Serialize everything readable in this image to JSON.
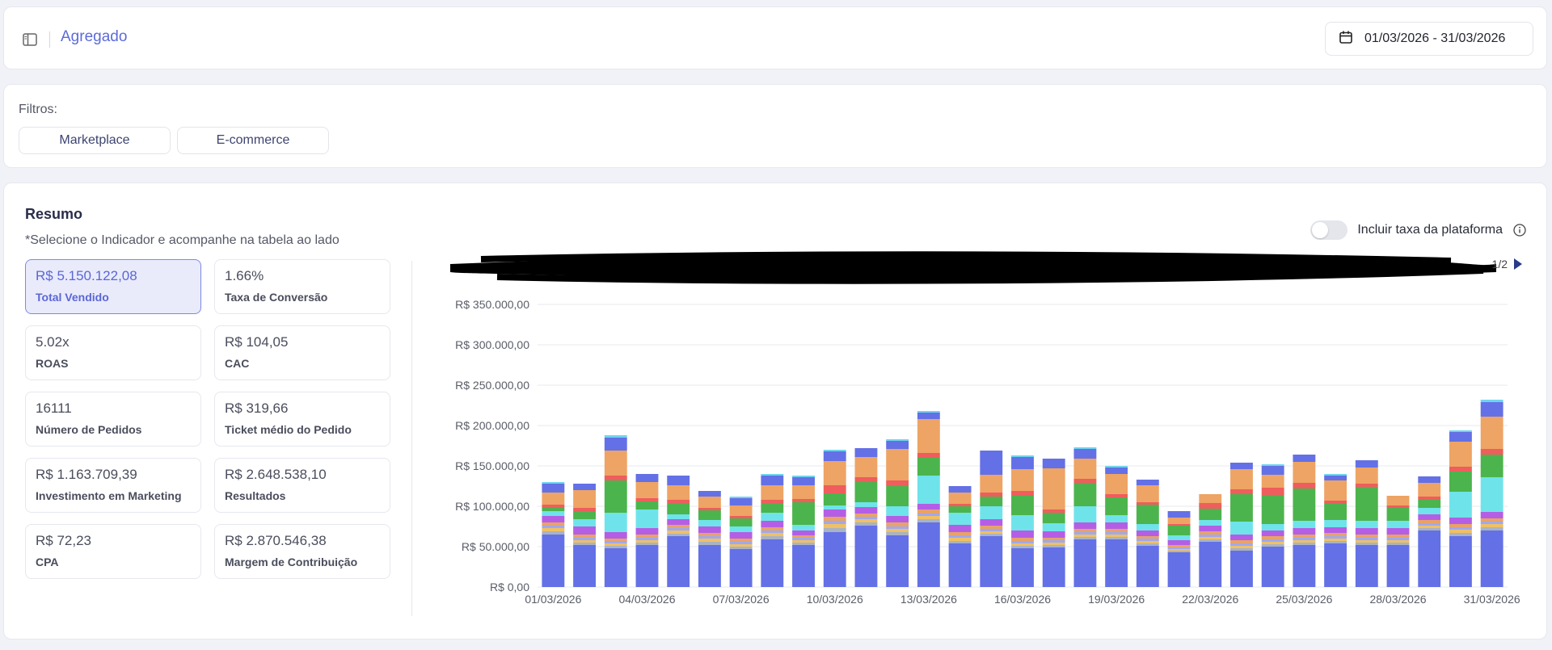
{
  "header": {
    "title": "Agregado",
    "date_range": "01/03/2026 - 31/03/2026",
    "icons": {
      "sidebar_toggle": "sidebar-icon",
      "calendar": "calendar-icon"
    }
  },
  "filters": {
    "label": "Filtros:",
    "options": [
      "Marketplace",
      "E-commerce"
    ]
  },
  "resumo": {
    "title": "Resumo",
    "hint": "*Selecione o Indicador e acompanhe na tabela ao lado",
    "kpis": [
      {
        "value": "R$ 5.150.122,08",
        "label": "Total Vendido",
        "selected": true
      },
      {
        "value": "1.66%",
        "label": "Taxa de Conversão"
      },
      {
        "value": "5.02x",
        "label": "ROAS"
      },
      {
        "value": "R$ 104,05",
        "label": "CAC"
      },
      {
        "value": "16111",
        "label": "Número de Pedidos"
      },
      {
        "value": "R$ 319,66",
        "label": "Ticket médio do Pedido"
      },
      {
        "value": "R$ 1.163.709,39",
        "label": "Investimento em Marketing"
      },
      {
        "value": "R$ 2.648.538,10",
        "label": "Resultados"
      },
      {
        "value": "R$ 72,23",
        "label": "CPA"
      },
      {
        "value": "R$ 2.870.546,38",
        "label": "Margem de Contribuição"
      }
    ],
    "toggle": {
      "label": "Incluir taxa da plataforma",
      "on": false
    },
    "legend_pager": "1/2"
  },
  "colors": {
    "accent": "#5b6bd9",
    "series": [
      "#6470e6",
      "#a9b3c4",
      "#f0c064",
      "#9fa9ef",
      "#e8a268",
      "#b45ee6",
      "#6fe3ea",
      "#4cb44c",
      "#ef5d5d",
      "#eea464",
      "#6470e6",
      "#6fd4ef"
    ]
  },
  "chart_data": {
    "type": "bar",
    "stacked": true,
    "x_tick_labels": [
      "01/03/2026",
      "04/03/2026",
      "07/03/2026",
      "10/03/2026",
      "13/03/2026",
      "16/03/2026",
      "19/03/2026",
      "22/03/2026",
      "25/03/2026",
      "28/03/2026",
      "31/03/2026"
    ],
    "y_tick_labels": [
      "R$ 0,00",
      "R$ 50.000,00",
      "R$ 100.000,00",
      "R$ 150.000,00",
      "R$ 200.000,00",
      "R$ 250.000,00",
      "R$ 300.000,00",
      "R$ 350.000,00"
    ],
    "ylim": [
      0,
      350000
    ],
    "grid": true,
    "categories": [
      "01/03/2026",
      "02/03/2026",
      "03/03/2026",
      "04/03/2026",
      "05/03/2026",
      "06/03/2026",
      "07/03/2026",
      "08/03/2026",
      "09/03/2026",
      "10/03/2026",
      "11/03/2026",
      "12/03/2026",
      "13/03/2026",
      "14/03/2026",
      "15/03/2026",
      "16/03/2026",
      "17/03/2026",
      "18/03/2026",
      "19/03/2026",
      "20/03/2026",
      "21/03/2026",
      "22/03/2026",
      "23/03/2026",
      "24/03/2026",
      "25/03/2026",
      "26/03/2026",
      "27/03/2026",
      "28/03/2026",
      "29/03/2026",
      "30/03/2026",
      "31/03/2026"
    ],
    "series": [
      {
        "values": [
          65000,
          52000,
          48000,
          52000,
          63000,
          52000,
          47000,
          59000,
          52000,
          68000,
          76000,
          64000,
          80000,
          54000,
          63000,
          48000,
          49000,
          59000,
          59000,
          51000,
          43000,
          56000,
          45000,
          50000,
          52000,
          54000,
          52000,
          52000,
          70000,
          63000,
          70000
        ]
      },
      {
        "values": [
          4000,
          3000,
          3000,
          3000,
          3000,
          4000,
          3000,
          4000,
          3000,
          5000,
          4000,
          4000,
          4000,
          3000,
          3000,
          3000,
          3000,
          3000,
          3000,
          3000,
          2000,
          3000,
          3000,
          3000,
          3000,
          3000,
          3000,
          3000,
          3000,
          4000,
          4000
        ]
      },
      {
        "values": [
          4000,
          3000,
          3000,
          3000,
          4000,
          4000,
          3000,
          4000,
          3000,
          5000,
          4000,
          4000,
          4000,
          4000,
          3000,
          3000,
          3000,
          3000,
          3000,
          3000,
          2000,
          3000,
          3000,
          3000,
          3000,
          3000,
          3000,
          3000,
          3000,
          4000,
          4000
        ]
      },
      {
        "values": [
          3000,
          3000,
          3000,
          3000,
          3000,
          3000,
          3000,
          3000,
          3000,
          4000,
          3000,
          3000,
          3000,
          3000,
          3000,
          3000,
          3000,
          3000,
          3000,
          3000,
          2000,
          3000,
          3000,
          3000,
          3000,
          3000,
          3000,
          3000,
          3000,
          3000,
          3000
        ]
      },
      {
        "values": [
          4000,
          4000,
          3000,
          4000,
          4000,
          4000,
          4000,
          4000,
          3000,
          5000,
          4000,
          5000,
          5000,
          4000,
          4000,
          4000,
          3000,
          4000,
          4000,
          3000,
          3000,
          4000,
          4000,
          4000,
          4000,
          4000,
          4000,
          4000,
          4000,
          4000,
          4000
        ]
      },
      {
        "values": [
          8000,
          10000,
          8000,
          8000,
          7000,
          8000,
          8000,
          8000,
          6000,
          9000,
          8000,
          8000,
          7000,
          9000,
          8000,
          9000,
          8000,
          8000,
          8000,
          7000,
          6000,
          7000,
          7000,
          7000,
          8000,
          7000,
          8000,
          8000,
          7000,
          8000,
          8000
        ]
      },
      {
        "values": [
          6000,
          9000,
          24000,
          23000,
          6000,
          8000,
          7000,
          10000,
          7000,
          5000,
          6000,
          12000,
          35000,
          15000,
          16000,
          19000,
          10000,
          20000,
          9000,
          8000,
          6000,
          7000,
          16000,
          8000,
          9000,
          9000,
          9000,
          9000,
          8000,
          32000,
          43000
        ]
      },
      {
        "values": [
          4000,
          10000,
          40000,
          10000,
          14000,
          12000,
          10000,
          12000,
          28000,
          15000,
          25000,
          25000,
          22000,
          8000,
          12000,
          24000,
          13000,
          29000,
          22000,
          24000,
          12000,
          14000,
          34000,
          36000,
          40000,
          20000,
          42000,
          16000,
          10000,
          25000,
          28000
        ]
      },
      {
        "values": [
          4000,
          4000,
          6000,
          4000,
          4000,
          3000,
          3000,
          4000,
          4000,
          10000,
          6000,
          7000,
          6000,
          3000,
          5000,
          6000,
          4000,
          5000,
          4000,
          3000,
          2000,
          7000,
          6000,
          9000,
          7000,
          4000,
          4000,
          3000,
          4000,
          6000,
          7000
        ]
      },
      {
        "values": [
          15000,
          22000,
          31000,
          20000,
          18000,
          14000,
          13000,
          18000,
          17000,
          30000,
          25000,
          39000,
          42000,
          14000,
          22000,
          27000,
          51000,
          25000,
          25000,
          21000,
          8000,
          11000,
          25000,
          16000,
          26000,
          25000,
          20000,
          12000,
          17000,
          31000,
          40000
        ]
      },
      {
        "values": [
          11000,
          8000,
          16000,
          10000,
          12000,
          7000,
          9000,
          12000,
          10000,
          12000,
          11000,
          10000,
          8000,
          8000,
          30000,
          15000,
          12000,
          12000,
          8000,
          7000,
          8000,
          0,
          8000,
          11000,
          9000,
          6000,
          9000,
          0,
          8000,
          12000,
          18000
        ]
      },
      {
        "values": [
          2000,
          0,
          3000,
          0,
          0,
          0,
          2000,
          2000,
          2000,
          2000,
          0,
          2000,
          2000,
          0,
          0,
          2000,
          0,
          2000,
          2000,
          0,
          0,
          0,
          0,
          2000,
          0,
          2000,
          0,
          0,
          0,
          2000,
          3000
        ]
      }
    ]
  }
}
